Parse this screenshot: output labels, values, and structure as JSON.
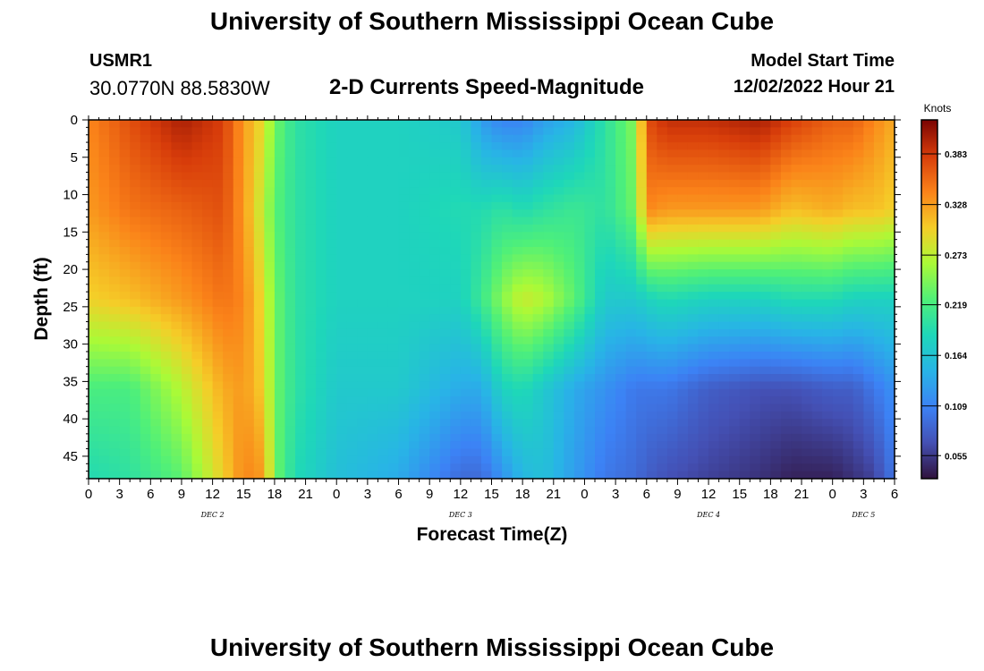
{
  "header": {
    "title": "University of Southern Mississippi Ocean Cube",
    "station": "USMR1",
    "coordinates": "30.0770N  88.5830W",
    "subtitle": "2-D Currents Speed-Magnitude",
    "model_start_label": "Model Start Time",
    "model_start_value": "12/02/2022 Hour 21"
  },
  "footer": {
    "title": "University of Southern Mississippi Ocean Cube"
  },
  "chart_data": {
    "type": "heatmap",
    "title": "2-D Currents Speed-Magnitude",
    "xlabel": "Forecast Time(Z)",
    "ylabel": "Depth (ft)",
    "x_tick_labels": [
      "0",
      "3",
      "6",
      "9",
      "12",
      "15",
      "18",
      "21",
      "0",
      "3",
      "6",
      "9",
      "12",
      "15",
      "18",
      "21",
      "0",
      "3",
      "6",
      "9",
      "12",
      "15",
      "18",
      "21",
      "0",
      "3",
      "6"
    ],
    "date_labels": [
      {
        "label": "DEC 2",
        "hour": 12
      },
      {
        "label": "DEC 3",
        "hour": 36
      },
      {
        "label": "DEC 4",
        "hour": 60
      },
      {
        "label": "DEC 5",
        "hour": 75
      }
    ],
    "xlim_hours": [
      0,
      78
    ],
    "y_ticks": [
      0,
      5,
      10,
      15,
      20,
      25,
      30,
      35,
      40,
      45
    ],
    "ylim": [
      0,
      48
    ],
    "colorbar": {
      "unit": "Knots",
      "ticks": [
        0.055,
        0.109,
        0.164,
        0.219,
        0.273,
        0.328,
        0.383
      ],
      "range": [
        0.03,
        0.42
      ]
    },
    "depths": [
      0,
      12,
      24,
      36,
      48
    ],
    "times": [
      0,
      4,
      9,
      13,
      15,
      17,
      18,
      20,
      24,
      30,
      36,
      38,
      40,
      42,
      44,
      47,
      50,
      53,
      54,
      56,
      60,
      65,
      68,
      72,
      74,
      76,
      78
    ],
    "values": [
      [
        0.34,
        0.37,
        0.4,
        0.38,
        0.33,
        0.29,
        0.24,
        0.2,
        0.18,
        0.18,
        0.17,
        0.13,
        0.11,
        0.11,
        0.13,
        0.15,
        0.2,
        0.25,
        0.37,
        0.39,
        0.39,
        0.4,
        0.38,
        0.36,
        0.36,
        0.34,
        0.32
      ],
      [
        0.33,
        0.35,
        0.36,
        0.37,
        0.33,
        0.27,
        0.23,
        0.2,
        0.18,
        0.18,
        0.19,
        0.19,
        0.2,
        0.19,
        0.2,
        0.21,
        0.2,
        0.24,
        0.34,
        0.33,
        0.33,
        0.33,
        0.31,
        0.32,
        0.31,
        0.31,
        0.3
      ],
      [
        0.3,
        0.31,
        0.33,
        0.35,
        0.34,
        0.29,
        0.24,
        0.2,
        0.18,
        0.18,
        0.18,
        0.21,
        0.25,
        0.28,
        0.27,
        0.23,
        0.17,
        0.17,
        0.18,
        0.19,
        0.18,
        0.18,
        0.19,
        0.19,
        0.18,
        0.18,
        0.18
      ],
      [
        0.22,
        0.22,
        0.27,
        0.32,
        0.33,
        0.3,
        0.24,
        0.2,
        0.17,
        0.17,
        0.14,
        0.14,
        0.18,
        0.19,
        0.17,
        0.14,
        0.12,
        0.1,
        0.1,
        0.1,
        0.08,
        0.07,
        0.07,
        0.08,
        0.08,
        0.1,
        0.12
      ],
      [
        0.19,
        0.2,
        0.23,
        0.3,
        0.34,
        0.33,
        0.24,
        0.19,
        0.16,
        0.14,
        0.09,
        0.09,
        0.12,
        0.15,
        0.16,
        0.13,
        0.1,
        0.09,
        0.08,
        0.07,
        0.06,
        0.05,
        0.04,
        0.04,
        0.05,
        0.06,
        0.1
      ]
    ]
  }
}
